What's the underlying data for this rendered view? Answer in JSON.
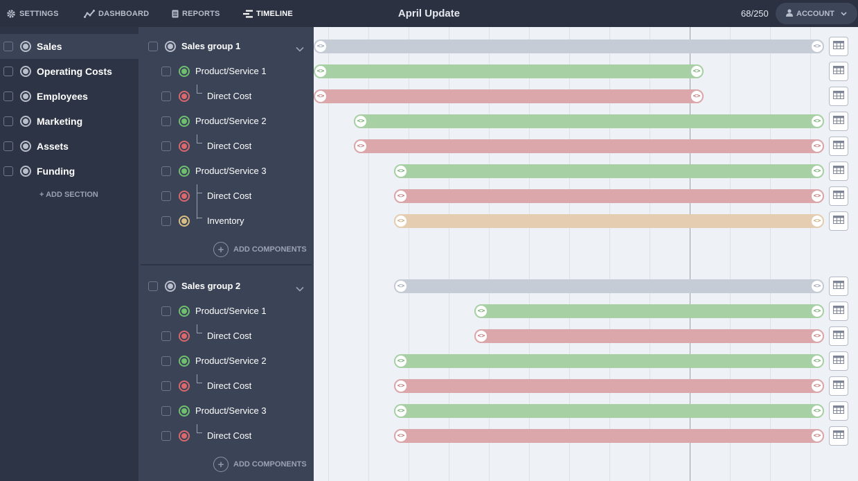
{
  "nav": {
    "settings": "SETTINGS",
    "dashboard": "DASHBOARD",
    "reports": "REPORTS",
    "timeline": "TIMELINE",
    "title": "April Update",
    "counter": "68/250",
    "account": "ACCOUNT"
  },
  "sidebar": {
    "items": [
      {
        "label": "Sales",
        "active": true
      },
      {
        "label": "Operating Costs"
      },
      {
        "label": "Employees"
      },
      {
        "label": "Marketing"
      },
      {
        "label": "Assets"
      },
      {
        "label": "Funding"
      }
    ],
    "add_section": "+ ADD SECTION"
  },
  "groups": [
    {
      "label": "Sales group 1",
      "add_components": "ADD COMPONENTS",
      "rows": [
        {
          "label": "Product/Service 1",
          "type": "revenue"
        },
        {
          "label": "Direct Cost",
          "type": "cost"
        },
        {
          "label": "Product/Service 2",
          "type": "revenue"
        },
        {
          "label": "Direct Cost",
          "type": "cost"
        },
        {
          "label": "Product/Service 3",
          "type": "revenue"
        },
        {
          "label": "Direct Cost",
          "type": "cost"
        },
        {
          "label": "Inventory",
          "type": "inventory"
        }
      ]
    },
    {
      "label": "Sales group 2",
      "add_components": "ADD COMPONENTS",
      "rows": [
        {
          "label": "Product/Service 1",
          "type": "revenue"
        },
        {
          "label": "Direct Cost",
          "type": "cost"
        },
        {
          "label": "Product/Service 2",
          "type": "revenue"
        },
        {
          "label": "Direct Cost",
          "type": "cost"
        },
        {
          "label": "Product/Service 3",
          "type": "revenue"
        },
        {
          "label": "Direct Cost",
          "type": "cost"
        }
      ]
    }
  ],
  "colors": {
    "revenue": "#a8d0a5",
    "cost": "#dba7aa",
    "inventory": "#e4cdb0",
    "group": "#c6ccd6",
    "topbar": "#2b3141",
    "sidebar": "#2d3445",
    "panel": "#3b4356",
    "timeline_bg": "#eef1f5"
  },
  "icons": {
    "settings": "gear-icon",
    "dashboard": "line-chart-icon",
    "reports": "document-icon",
    "timeline": "timeline-icon",
    "account": "user-icon",
    "account_menu": "chevron-down-icon",
    "group_toggle": "chevron-down-icon",
    "bar_handle": "resize-handle-icon",
    "row_action": "table-grid-icon",
    "add_components": "plus-circle-icon"
  }
}
